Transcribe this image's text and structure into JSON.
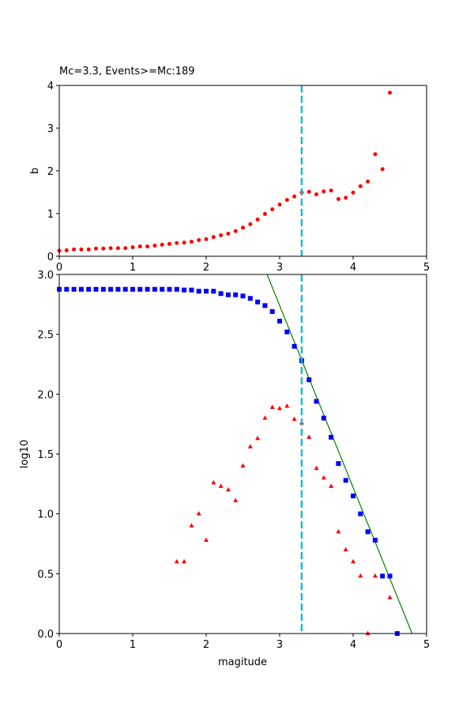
{
  "chart_data": [
    {
      "type": "scatter",
      "title": "Mc=3.3, Events>=Mc:189",
      "xlabel": "",
      "ylabel": "b",
      "xlim": [
        0,
        5
      ],
      "ylim": [
        0,
        4
      ],
      "xticks": [
        0,
        1,
        2,
        3,
        4,
        5
      ],
      "yticks": [
        0,
        1,
        2,
        3,
        4
      ],
      "grid": false,
      "mc_line": {
        "x": 3.3,
        "color": "#17becf",
        "style": "dashed"
      },
      "series": [
        {
          "marker": "circle",
          "color": "#ff0000",
          "x": [
            0,
            0.1,
            0.2,
            0.3,
            0.4,
            0.5,
            0.6,
            0.7,
            0.8,
            0.9,
            1.0,
            1.1,
            1.2,
            1.3,
            1.4,
            1.5,
            1.6,
            1.7,
            1.8,
            1.9,
            2.0,
            2.1,
            2.2,
            2.3,
            2.4,
            2.5,
            2.6,
            2.7,
            2.8,
            2.9,
            3.0,
            3.1,
            3.2,
            3.3,
            3.4,
            3.5,
            3.6,
            3.7,
            3.8,
            3.9,
            4.0,
            4.1,
            4.2,
            4.3,
            4.4,
            4.5
          ],
          "y": [
            0.13,
            0.14,
            0.16,
            0.16,
            0.16,
            0.18,
            0.18,
            0.19,
            0.19,
            0.19,
            0.21,
            0.23,
            0.23,
            0.25,
            0.27,
            0.29,
            0.31,
            0.32,
            0.34,
            0.38,
            0.4,
            0.45,
            0.49,
            0.53,
            0.59,
            0.67,
            0.75,
            0.86,
            0.99,
            1.1,
            1.21,
            1.32,
            1.4,
            1.49,
            1.51,
            1.45,
            1.52,
            1.54,
            1.34,
            1.37,
            1.49,
            1.64,
            1.75,
            2.39,
            2.04,
            3.83
          ]
        }
      ]
    },
    {
      "type": "scatter",
      "title": "",
      "xlabel": "magitude",
      "ylabel": "log10",
      "xlim": [
        0,
        5
      ],
      "ylim": [
        0,
        3
      ],
      "xticks": [
        0,
        1,
        2,
        3,
        4,
        5
      ],
      "yticks": [
        "0.0",
        "0.5",
        "1.0",
        "1.5",
        "2.0",
        "2.5",
        "3.0"
      ],
      "grid": false,
      "mc_line": {
        "x": 3.3,
        "color": "#17becf",
        "style": "dashed"
      },
      "fit_line": {
        "color": "#008000",
        "intercept": 7.3,
        "slope": -1.52
      },
      "series": [
        {
          "marker": "square",
          "color": "#0000ff",
          "x": [
            0,
            0.1,
            0.2,
            0.3,
            0.4,
            0.5,
            0.6,
            0.7,
            0.8,
            0.9,
            1.0,
            1.1,
            1.2,
            1.3,
            1.4,
            1.5,
            1.6,
            1.7,
            1.8,
            1.9,
            2.0,
            2.1,
            2.2,
            2.3,
            2.4,
            2.5,
            2.6,
            2.7,
            2.8,
            2.9,
            3.0,
            3.1,
            3.2,
            3.3,
            3.4,
            3.5,
            3.6,
            3.7,
            3.8,
            3.9,
            4.0,
            4.1,
            4.2,
            4.3,
            4.4,
            4.5,
            4.6
          ],
          "y": [
            2.876,
            2.876,
            2.876,
            2.876,
            2.876,
            2.876,
            2.876,
            2.876,
            2.876,
            2.876,
            2.876,
            2.876,
            2.876,
            2.876,
            2.876,
            2.876,
            2.876,
            2.87,
            2.87,
            2.86,
            2.86,
            2.86,
            2.84,
            2.83,
            2.83,
            2.82,
            2.8,
            2.77,
            2.74,
            2.69,
            2.61,
            2.52,
            2.4,
            2.28,
            2.12,
            1.94,
            1.8,
            1.64,
            1.42,
            1.28,
            1.15,
            1.0,
            0.85,
            0.78,
            0.48,
            0.48,
            0.0
          ]
        },
        {
          "marker": "triangle",
          "color": "#ff0000",
          "x": [
            1.6,
            1.7,
            1.8,
            1.9,
            2.0,
            2.1,
            2.2,
            2.3,
            2.4,
            2.5,
            2.6,
            2.7,
            2.8,
            2.9,
            3.0,
            3.1,
            3.2,
            3.3,
            3.4,
            3.5,
            3.6,
            3.7,
            3.8,
            3.9,
            4.0,
            4.1,
            4.2,
            4.3,
            4.5
          ],
          "y": [
            0.6,
            0.6,
            0.9,
            1.0,
            0.78,
            1.26,
            1.23,
            1.2,
            1.11,
            1.4,
            1.56,
            1.63,
            1.8,
            1.89,
            1.88,
            1.9,
            1.79,
            1.76,
            1.64,
            1.38,
            1.3,
            1.23,
            0.85,
            0.7,
            0.6,
            0.48,
            0.0,
            0.48,
            0.3
          ]
        }
      ]
    }
  ]
}
